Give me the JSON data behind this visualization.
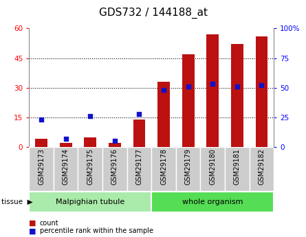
{
  "title": "GDS732 / 144188_at",
  "categories": [
    "GSM29173",
    "GSM29174",
    "GSM29175",
    "GSM29176",
    "GSM29177",
    "GSM29178",
    "GSM29179",
    "GSM29180",
    "GSM29181",
    "GSM29182"
  ],
  "count": [
    4,
    2,
    5,
    2,
    14,
    33,
    47,
    57,
    52,
    56
  ],
  "percentile": [
    23,
    7,
    26,
    5,
    28,
    48,
    51,
    53,
    51,
    52
  ],
  "tissue_groups": [
    {
      "label": "Malpighian tubule",
      "start": 0,
      "end": 4,
      "color": "#aaeaaa"
    },
    {
      "label": "whole organism",
      "start": 5,
      "end": 9,
      "color": "#55dd55"
    }
  ],
  "left_ylim": [
    0,
    60
  ],
  "right_ylim": [
    0,
    100
  ],
  "left_yticks": [
    0,
    15,
    30,
    45,
    60
  ],
  "right_yticks": [
    0,
    25,
    50,
    75,
    100
  ],
  "right_yticklabels": [
    "0",
    "25",
    "50",
    "75",
    "100%"
  ],
  "bar_color": "#bb1111",
  "dot_color": "#1111cc",
  "bar_width": 0.5,
  "legend_count_label": "count",
  "legend_pct_label": "percentile rank within the sample",
  "title_fontsize": 11,
  "tick_fontsize": 7.5,
  "label_fontsize": 7,
  "tissue_fontsize": 8
}
